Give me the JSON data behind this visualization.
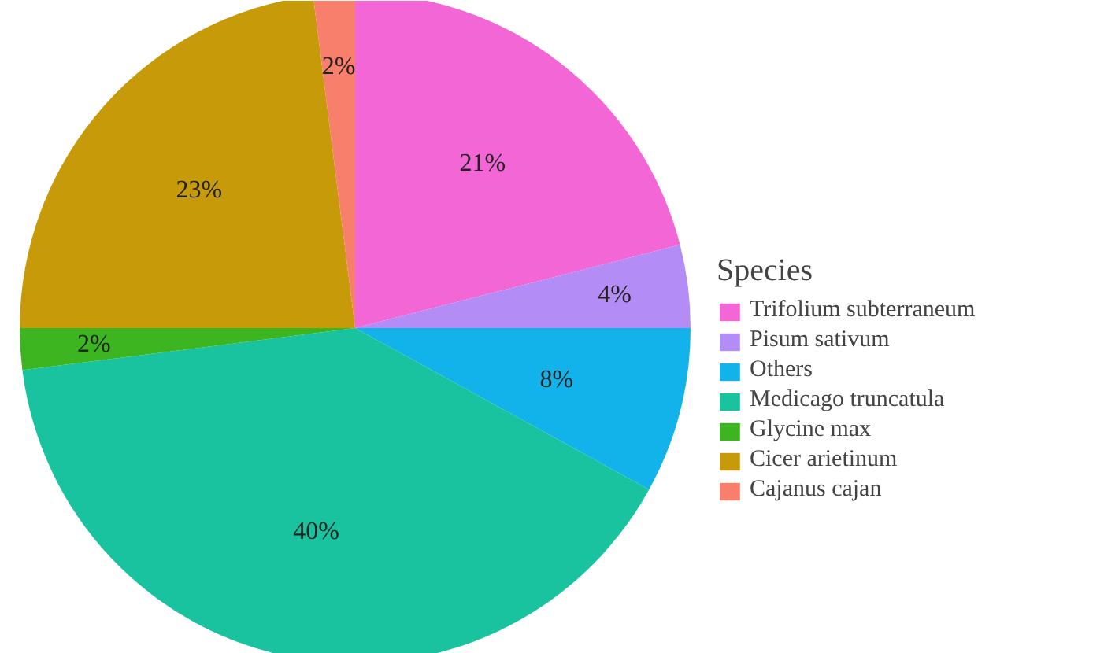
{
  "chart_data": {
    "type": "pie",
    "legend_title": "Species",
    "legend": "right",
    "categories": [
      "Trifolium subterraneum",
      "Pisum sativum",
      "Others",
      "Medicago truncatula",
      "Glycine max",
      "Cicer arietinum",
      "Cajanus cajan"
    ],
    "values": [
      21,
      4,
      8,
      40,
      2,
      23,
      2
    ],
    "colors": [
      "#f266d6",
      "#b48cf5",
      "#12b3eb",
      "#19c3a0",
      "#3cb521",
      "#c79a0a",
      "#f77f6b"
    ],
    "value_labels": [
      "21%",
      "4%",
      "8%",
      "40%",
      "2%",
      "23%",
      "2%"
    ]
  }
}
